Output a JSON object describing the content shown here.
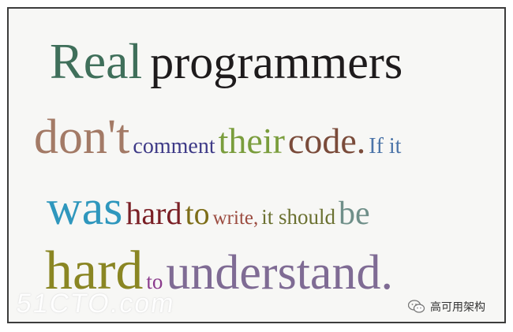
{
  "quote": {
    "line1": {
      "w1": "Real",
      "w2": "programmers"
    },
    "line2": {
      "w1": "don't",
      "w2": "comment",
      "w3": "their",
      "w4": "code.",
      "w5": "If it"
    },
    "line3": {
      "w1": "was",
      "w2": "hard",
      "w3": "to",
      "w4": "write,",
      "w5": "it should",
      "w6": "be"
    },
    "line4": {
      "w1": "hard",
      "w2": "to",
      "w3": "understand."
    }
  },
  "watermark": {
    "text": "51CTO.com"
  },
  "badge": {
    "icon": "wechat-icon",
    "text": "高可用架构"
  },
  "colors": {
    "frame_border": "#3c3c3c",
    "background": "#f7f7f5",
    "green": "#3f6f5a",
    "black": "#1e1b1c",
    "tan": "#a37a66",
    "navy": "#3e3a87",
    "olive_green": "#7a9d3c",
    "brown": "#7a4b3a",
    "steel_blue": "#4b74a8",
    "teal": "#2f97bd",
    "maroon": "#7a1f25",
    "olive": "#7d6d17",
    "rust": "#9b4b3f",
    "dark_olive": "#6b7131",
    "gray_green": "#6f8f89",
    "mustard": "#8a8623",
    "purple": "#8a3a8c",
    "mauve": "#7f6b94"
  }
}
